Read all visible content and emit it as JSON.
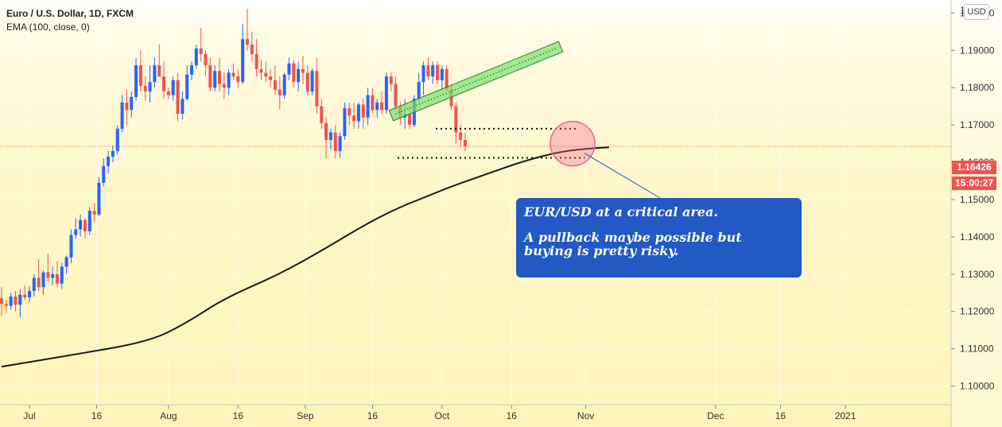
{
  "header": {
    "title": "Euro / U.S. Dollar, 1D, FXCM",
    "indicator": "EMA (100, close, 0)",
    "currency_button": "USD"
  },
  "price_tag": "1.16426",
  "timer_tag": "15:00:27",
  "annotation": {
    "line1": "EUR/USD at a critical area.",
    "line2": "A pullback maybe possible but buying is pretty risky."
  },
  "colors": {
    "up": "#2962ff",
    "down": "#ef5350",
    "ema": "#1a1a1a",
    "channel": "#7be06b",
    "highlight": "#f06292",
    "note_bg": "#2259c4"
  },
  "chart_data": {
    "type": "candlestick",
    "symbol": "EUR/USD",
    "timeframe": "1D",
    "ylim": [
      1.095,
      1.2035
    ],
    "yticks": [
      "1.10000",
      "1.11000",
      "1.12000",
      "1.13000",
      "1.14000",
      "1.15000",
      "1.16000",
      "1.17000",
      "1.18000",
      "1.19000",
      "1.20000"
    ],
    "xticks": [
      "Jul",
      "16",
      "Aug",
      "16",
      "Sep",
      "16",
      "Oct",
      "16",
      "Nov",
      "Dec",
      "16",
      "2021"
    ],
    "last_price": 1.16426,
    "candles": [
      [
        1.1235,
        1.1265,
        1.1188,
        1.122
      ],
      [
        1.122,
        1.123,
        1.1195,
        1.1215
      ],
      [
        1.1215,
        1.125,
        1.1205,
        1.124
      ],
      [
        1.124,
        1.1255,
        1.12,
        1.1218
      ],
      [
        1.1218,
        1.126,
        1.1185,
        1.1245
      ],
      [
        1.1245,
        1.127,
        1.123,
        1.1238
      ],
      [
        1.1238,
        1.1268,
        1.1225,
        1.1255
      ],
      [
        1.1255,
        1.13,
        1.124,
        1.129
      ],
      [
        1.129,
        1.134,
        1.1255,
        1.1265
      ],
      [
        1.1265,
        1.131,
        1.1245,
        1.1305
      ],
      [
        1.1305,
        1.1355,
        1.128,
        1.129
      ],
      [
        1.129,
        1.132,
        1.127,
        1.13
      ],
      [
        1.13,
        1.1335,
        1.1265,
        1.1275
      ],
      [
        1.1275,
        1.133,
        1.126,
        1.132
      ],
      [
        1.132,
        1.135,
        1.13,
        1.1345
      ],
      [
        1.1345,
        1.142,
        1.133,
        1.1405
      ],
      [
        1.1405,
        1.145,
        1.1395,
        1.142
      ],
      [
        1.142,
        1.146,
        1.14,
        1.1445
      ],
      [
        1.1445,
        1.145,
        1.1395,
        1.1415
      ],
      [
        1.1415,
        1.148,
        1.1405,
        1.147
      ],
      [
        1.147,
        1.149,
        1.144,
        1.146
      ],
      [
        1.146,
        1.156,
        1.1455,
        1.1545
      ],
      [
        1.1545,
        1.161,
        1.1535,
        1.159
      ],
      [
        1.159,
        1.163,
        1.157,
        1.1615
      ],
      [
        1.1615,
        1.1645,
        1.16,
        1.163
      ],
      [
        1.163,
        1.17,
        1.162,
        1.169
      ],
      [
        1.169,
        1.178,
        1.168,
        1.176
      ],
      [
        1.176,
        1.1795,
        1.17,
        1.174
      ],
      [
        1.174,
        1.179,
        1.172,
        1.1775
      ],
      [
        1.1775,
        1.188,
        1.1765,
        1.186
      ],
      [
        1.186,
        1.19,
        1.179,
        1.1805
      ],
      [
        1.1805,
        1.183,
        1.1765,
        1.179
      ],
      [
        1.179,
        1.186,
        1.176,
        1.1815
      ],
      [
        1.1815,
        1.188,
        1.18,
        1.186
      ],
      [
        1.186,
        1.1916,
        1.183,
        1.183
      ],
      [
        1.183,
        1.187,
        1.177,
        1.179
      ],
      [
        1.179,
        1.18,
        1.177,
        1.178
      ],
      [
        1.178,
        1.183,
        1.1765,
        1.182
      ],
      [
        1.182,
        1.184,
        1.171,
        1.173
      ],
      [
        1.173,
        1.179,
        1.1715,
        1.177
      ],
      [
        1.177,
        1.186,
        1.1765,
        1.1835
      ],
      [
        1.1835,
        1.187,
        1.182,
        1.186
      ],
      [
        1.186,
        1.1915,
        1.185,
        1.1905
      ],
      [
        1.1905,
        1.196,
        1.187,
        1.189
      ],
      [
        1.189,
        1.19,
        1.183,
        1.186
      ],
      [
        1.186,
        1.188,
        1.179,
        1.18
      ],
      [
        1.18,
        1.186,
        1.179,
        1.1845
      ],
      [
        1.1845,
        1.188,
        1.179,
        1.181
      ],
      [
        1.181,
        1.184,
        1.177,
        1.18
      ],
      [
        1.18,
        1.185,
        1.178,
        1.184
      ],
      [
        1.184,
        1.1865,
        1.182,
        1.183
      ],
      [
        1.183,
        1.185,
        1.18,
        1.1815
      ],
      [
        1.1815,
        1.197,
        1.181,
        1.193
      ],
      [
        1.193,
        1.2011,
        1.19,
        1.1915
      ],
      [
        1.1915,
        1.195,
        1.187,
        1.189
      ],
      [
        1.189,
        1.193,
        1.183,
        1.185
      ],
      [
        1.185,
        1.1875,
        1.182,
        1.184
      ],
      [
        1.184,
        1.187,
        1.1815,
        1.183
      ],
      [
        1.183,
        1.185,
        1.18,
        1.182
      ],
      [
        1.182,
        1.186,
        1.178,
        1.1795
      ],
      [
        1.1795,
        1.183,
        1.174,
        1.178
      ],
      [
        1.178,
        1.184,
        1.177,
        1.1835
      ],
      [
        1.1835,
        1.188,
        1.182,
        1.1865
      ],
      [
        1.1865,
        1.1875,
        1.18,
        1.1815
      ],
      [
        1.1815,
        1.187,
        1.179,
        1.185
      ],
      [
        1.185,
        1.1885,
        1.181,
        1.184
      ],
      [
        1.184,
        1.186,
        1.178,
        1.179
      ],
      [
        1.179,
        1.185,
        1.178,
        1.1845
      ],
      [
        1.1845,
        1.188,
        1.173,
        1.175
      ],
      [
        1.175,
        1.177,
        1.169,
        1.1705
      ],
      [
        1.1705,
        1.172,
        1.161,
        1.166
      ],
      [
        1.166,
        1.169,
        1.1635,
        1.168
      ],
      [
        1.168,
        1.17,
        1.161,
        1.163
      ],
      [
        1.163,
        1.168,
        1.1612,
        1.167
      ],
      [
        1.167,
        1.176,
        1.166,
        1.1745
      ],
      [
        1.1745,
        1.176,
        1.17,
        1.1725
      ],
      [
        1.1725,
        1.176,
        1.169,
        1.171
      ],
      [
        1.171,
        1.176,
        1.169,
        1.1755
      ],
      [
        1.1755,
        1.177,
        1.169,
        1.172
      ],
      [
        1.172,
        1.18,
        1.17,
        1.178
      ],
      [
        1.178,
        1.18,
        1.173,
        1.174
      ],
      [
        1.174,
        1.177,
        1.172,
        1.176
      ],
      [
        1.176,
        1.179,
        1.173,
        1.174
      ],
      [
        1.174,
        1.184,
        1.173,
        1.183
      ],
      [
        1.183,
        1.184,
        1.179,
        1.181
      ],
      [
        1.181,
        1.183,
        1.174,
        1.175
      ],
      [
        1.175,
        1.176,
        1.17,
        1.172
      ],
      [
        1.172,
        1.177,
        1.169,
        1.173
      ],
      [
        1.173,
        1.175,
        1.169,
        1.17
      ],
      [
        1.17,
        1.178,
        1.1695,
        1.177
      ],
      [
        1.177,
        1.184,
        1.176,
        1.1815
      ],
      [
        1.1815,
        1.187,
        1.178,
        1.186
      ],
      [
        1.186,
        1.188,
        1.182,
        1.183
      ],
      [
        1.183,
        1.187,
        1.181,
        1.186
      ],
      [
        1.186,
        1.187,
        1.181,
        1.182
      ],
      [
        1.182,
        1.186,
        1.179,
        1.185
      ],
      [
        1.185,
        1.186,
        1.179,
        1.1795
      ],
      [
        1.1795,
        1.181,
        1.174,
        1.175
      ],
      [
        1.175,
        1.176,
        1.165,
        1.168
      ],
      [
        1.168,
        1.17,
        1.164,
        1.166
      ],
      [
        1.166,
        1.168,
        1.163,
        1.16426
      ]
    ],
    "ema_100": [
      [
        0,
        1.1052
      ],
      [
        16,
        1.1085
      ],
      [
        32,
        1.112
      ],
      [
        40,
        1.117
      ],
      [
        48,
        1.1235
      ],
      [
        60,
        1.13
      ],
      [
        70,
        1.137
      ],
      [
        78,
        1.143
      ],
      [
        85,
        1.1475
      ],
      [
        92,
        1.151
      ],
      [
        97,
        1.1535
      ],
      [
        105,
        1.157
      ],
      [
        113,
        1.1605
      ],
      [
        121,
        1.163
      ],
      [
        128,
        1.1638
      ],
      [
        131,
        1.164
      ]
    ],
    "annotations": {
      "channel": {
        "from": [
          0.0,
          1.1725
        ],
        "to": [
          28.8,
          1.191
        ]
      },
      "resistance_dotted": {
        "from": [
          14.0,
          1.169
        ],
        "to": [
          30.0,
          1.169
        ]
      },
      "support_dotted": {
        "from": [
          6.0,
          1.1612
        ],
        "to": [
          31.8,
          1.1612
        ]
      },
      "highlight_circle": {
        "center": [
          29.0,
          1.165
        ]
      }
    }
  }
}
